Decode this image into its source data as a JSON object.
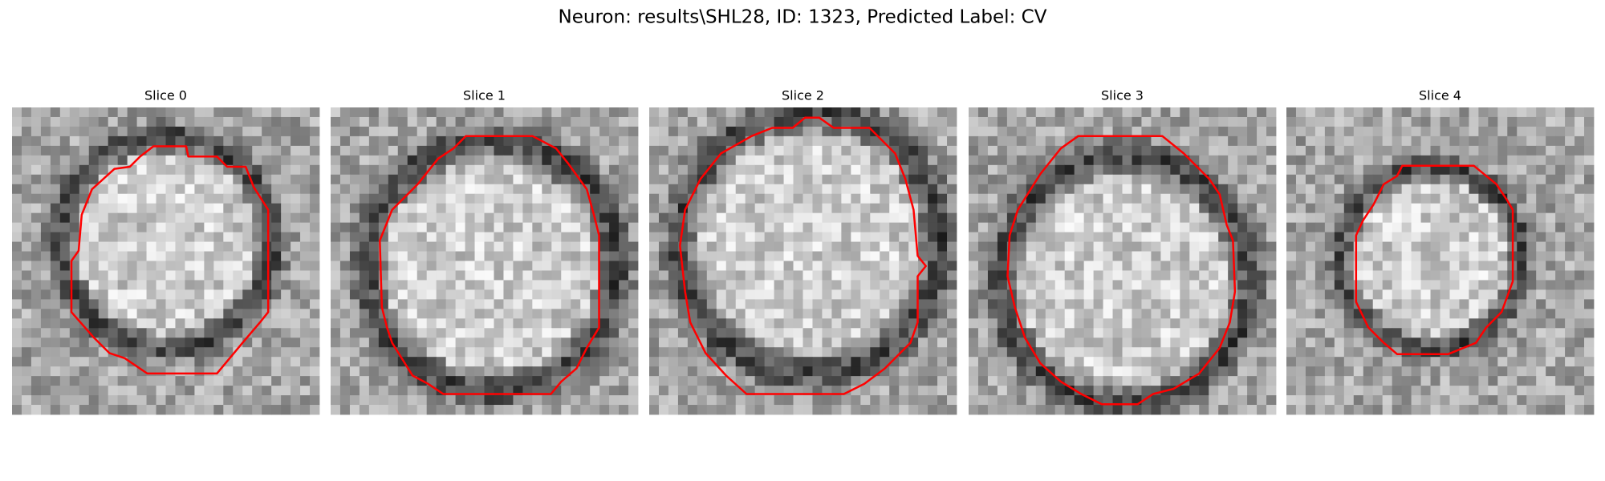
{
  "title": "Neuron: results\\SHL28, ID: 1323, Predicted Label: CV",
  "slices": [
    "Slice 0",
    "Slice 1",
    "Slice 2",
    "Slice 3",
    "Slice 4"
  ]
}
